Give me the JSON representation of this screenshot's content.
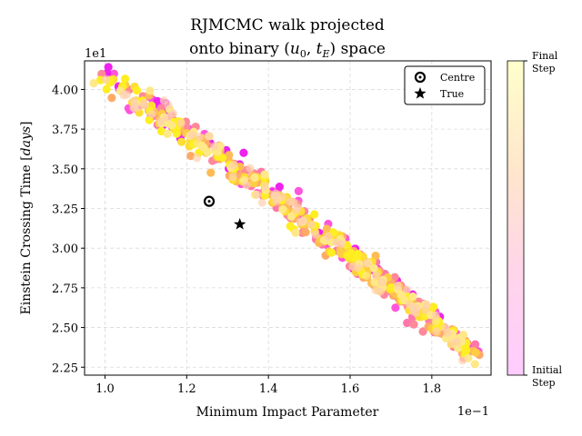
{
  "chart_data": {
    "type": "scatter",
    "title_line1": "RJMCMC walk projected",
    "title_line2_prefix": "onto binary (",
    "title_line2_u0": "u",
    "title_line2_u0_sub": "0",
    "title_line2_sep": ", ",
    "title_line2_tE": "t",
    "title_line2_tE_sub": "E",
    "title_line2_suffix": ") space",
    "xlabel": "Minimum Impact Parameter",
    "ylabel": "Einstein Crossing Time [days]",
    "x_offset_label": "1e−1",
    "y_offset_label": "1e1",
    "x_scale": 0.1,
    "y_scale": 10,
    "xlim": [
      0.095,
      0.1945
    ],
    "ylim": [
      22.0,
      41.8
    ],
    "xticks": [
      0.1,
      0.12,
      0.14,
      0.16,
      0.18
    ],
    "xtick_labels": [
      "1.0",
      "1.2",
      "1.4",
      "1.6",
      "1.8"
    ],
    "yticks": [
      22.5,
      25.0,
      27.5,
      30.0,
      32.5,
      35.0,
      37.5,
      40.0
    ],
    "ytick_labels": [
      "2.25",
      "2.50",
      "2.75",
      "3.00",
      "3.25",
      "3.50",
      "3.75",
      "4.00"
    ],
    "grid": true,
    "legend": {
      "placement": "top-right",
      "entries": [
        {
          "label": "Centre",
          "marker": "ring"
        },
        {
          "label": "True",
          "marker": "star"
        }
      ]
    },
    "colorbar": {
      "top_label_line1": "Final",
      "top_label_line2": "Step",
      "bottom_label_line1": "Initial",
      "bottom_label_line2": "Step",
      "colors": [
        "#ffccff",
        "#ff66cc",
        "#ffcc66",
        "#ffff99"
      ]
    },
    "centre": {
      "x": 0.1255,
      "y": 32.95
    },
    "true": {
      "x": 0.133,
      "y": 31.5
    },
    "walk": {
      "x_start": 0.099,
      "x_end": 0.191,
      "y_start": 40.8,
      "y_end": 23.1,
      "n_points": 620
    }
  }
}
